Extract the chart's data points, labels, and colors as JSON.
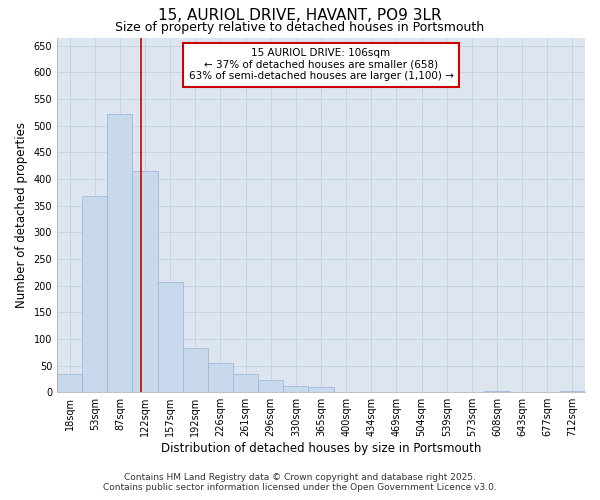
{
  "title": "15, AURIOL DRIVE, HAVANT, PO9 3LR",
  "subtitle": "Size of property relative to detached houses in Portsmouth",
  "xlabel": "Distribution of detached houses by size in Portsmouth",
  "ylabel": "Number of detached properties",
  "bar_labels": [
    "18sqm",
    "53sqm",
    "87sqm",
    "122sqm",
    "157sqm",
    "192sqm",
    "226sqm",
    "261sqm",
    "296sqm",
    "330sqm",
    "365sqm",
    "400sqm",
    "434sqm",
    "469sqm",
    "504sqm",
    "539sqm",
    "573sqm",
    "608sqm",
    "643sqm",
    "677sqm",
    "712sqm"
  ],
  "bar_values": [
    35,
    367,
    522,
    415,
    207,
    83,
    55,
    35,
    22,
    12,
    10,
    0,
    0,
    0,
    0,
    0,
    0,
    3,
    0,
    0,
    2
  ],
  "bar_color": "#c9d9ed",
  "bar_edge_color": "#a0b8d8",
  "red_line_x": 2.85,
  "annotation_title": "15 AURIOL DRIVE: 106sqm",
  "annotation_line1": "← 37% of detached houses are smaller (658)",
  "annotation_line2": "63% of semi-detached houses are larger (1,100) →",
  "annotation_box_facecolor": "#ffffff",
  "annotation_box_edgecolor": "#cc0000",
  "ylim": [
    0,
    665
  ],
  "yticks": [
    0,
    50,
    100,
    150,
    200,
    250,
    300,
    350,
    400,
    450,
    500,
    550,
    600,
    650
  ],
  "plot_bg_color": "#dde6f0",
  "background_color": "#ffffff",
  "grid_color": "#c0cdd8",
  "footer_line1": "Contains HM Land Registry data © Crown copyright and database right 2025.",
  "footer_line2": "Contains public sector information licensed under the Open Government Licence v3.0.",
  "title_fontsize": 11,
  "subtitle_fontsize": 9,
  "axis_label_fontsize": 8.5,
  "tick_fontsize": 7,
  "annotation_fontsize": 7.5,
  "footer_fontsize": 6.5
}
